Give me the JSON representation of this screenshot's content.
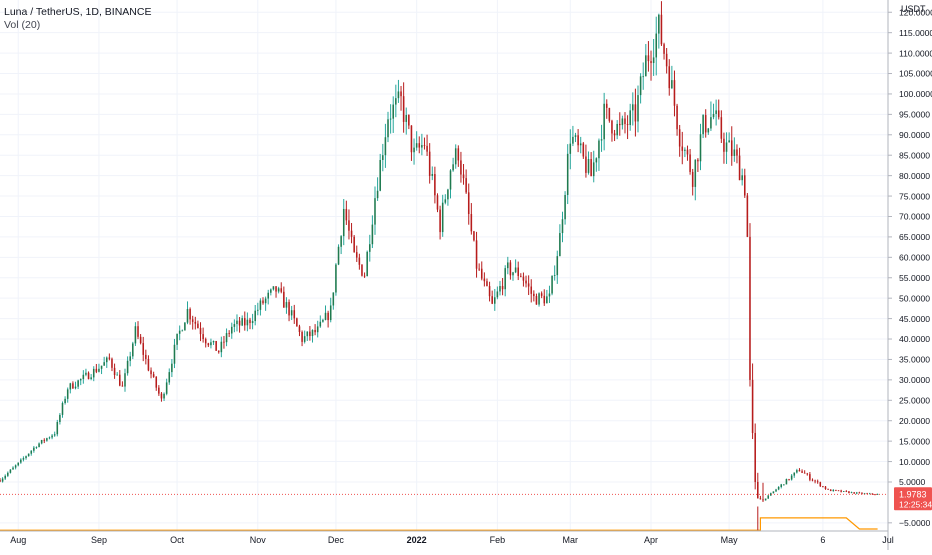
{
  "header": {
    "symbol_line": "Luna / TetherUS, 1D, BINANCE",
    "indicator_line": "Vol (20)"
  },
  "price_axis": {
    "currency_label": "USDT",
    "ticks": [
      "120.0000",
      "115.0000",
      "110.0000",
      "105.0000",
      "100.0000",
      "95.0000",
      "90.0000",
      "85.0000",
      "80.0000",
      "75.0000",
      "70.0000",
      "65.0000",
      "60.0000",
      "55.0000",
      "50.0000",
      "45.0000",
      "40.0000",
      "35.0000",
      "30.0000",
      "25.0000",
      "20.0000",
      "15.0000",
      "10.0000",
      "5.0000",
      "−5.0000"
    ]
  },
  "time_axis": {
    "labels": [
      "Aug",
      "Sep",
      "Oct",
      "Nov",
      "Dec",
      "2022",
      "Feb",
      "Mar",
      "Apr",
      "May",
      "6",
      "Jul"
    ],
    "bold_label": "2022"
  },
  "last_price": {
    "value": "1.9783",
    "countdown": "12:25:34"
  },
  "colors": {
    "up": "#26a69a",
    "up_body": "#1f7a4f",
    "down": "#b71c1c",
    "grid": "#f0f3fa",
    "axis_text": "#131722",
    "last_price_badge": "#ef5350",
    "last_price_line": "#ef5350",
    "volume_ma": "#ff9800"
  },
  "chart_data": {
    "type": "candlestick",
    "symbol": "Luna / TetherUS",
    "interval": "1D",
    "exchange": "BINANCE",
    "y_range": [
      -7,
      123
    ],
    "x_range": [
      "2021-07-25",
      "2022-07-01"
    ],
    "close_anchors": [
      [
        "2021-07-25",
        5.5
      ],
      [
        "2021-08-01",
        9.5
      ],
      [
        "2021-08-08",
        14
      ],
      [
        "2021-08-15",
        17
      ],
      [
        "2021-08-20",
        28
      ],
      [
        "2021-08-25",
        30
      ],
      [
        "2021-09-01",
        33
      ],
      [
        "2021-09-05",
        35
      ],
      [
        "2021-09-10",
        28
      ],
      [
        "2021-09-15",
        42
      ],
      [
        "2021-09-20",
        33
      ],
      [
        "2021-09-25",
        25
      ],
      [
        "2021-10-01",
        40
      ],
      [
        "2021-10-05",
        47
      ],
      [
        "2021-10-12",
        40
      ],
      [
        "2021-10-17",
        37
      ],
      [
        "2021-10-22",
        43
      ],
      [
        "2021-10-28",
        44
      ],
      [
        "2021-11-03",
        49
      ],
      [
        "2021-11-08",
        52
      ],
      [
        "2021-11-13",
        47
      ],
      [
        "2021-11-18",
        40
      ],
      [
        "2021-11-24",
        42
      ],
      [
        "2021-11-29",
        47
      ],
      [
        "2021-12-01",
        58
      ],
      [
        "2021-12-04",
        72
      ],
      [
        "2021-12-08",
        60
      ],
      [
        "2021-12-12",
        56
      ],
      [
        "2021-12-16",
        75
      ],
      [
        "2021-12-21",
        95
      ],
      [
        "2021-12-26",
        98
      ],
      [
        "2021-12-31",
        85
      ],
      [
        "2022-01-04",
        88
      ],
      [
        "2022-01-10",
        68
      ],
      [
        "2022-01-14",
        82
      ],
      [
        "2022-01-17",
        86
      ],
      [
        "2022-01-21",
        70
      ],
      [
        "2022-01-24",
        58
      ],
      [
        "2022-01-30",
        48
      ],
      [
        "2022-02-05",
        57
      ],
      [
        "2022-02-10",
        56
      ],
      [
        "2022-02-15",
        50
      ],
      [
        "2022-02-21",
        50
      ],
      [
        "2022-02-25",
        65
      ],
      [
        "2022-03-01",
        90
      ],
      [
        "2022-03-05",
        85
      ],
      [
        "2022-03-09",
        80
      ],
      [
        "2022-03-14",
        95
      ],
      [
        "2022-03-20",
        91
      ],
      [
        "2022-03-26",
        95
      ],
      [
        "2022-03-30",
        108
      ],
      [
        "2022-04-04",
        116
      ],
      [
        "2022-04-08",
        105
      ],
      [
        "2022-04-12",
        90
      ],
      [
        "2022-04-17",
        80
      ],
      [
        "2022-04-21",
        92
      ],
      [
        "2022-04-25",
        95
      ],
      [
        "2022-04-29",
        88
      ],
      [
        "2022-05-03",
        85
      ],
      [
        "2022-05-06",
        80
      ],
      [
        "2022-05-07",
        77
      ],
      [
        "2022-05-08",
        65
      ],
      [
        "2022-05-09",
        30
      ],
      [
        "2022-05-10",
        17
      ],
      [
        "2022-05-11",
        5
      ],
      [
        "2022-05-12",
        1
      ],
      [
        "2022-05-14",
        0.5
      ],
      [
        "2022-05-28",
        8
      ],
      [
        "2022-06-01",
        6
      ],
      [
        "2022-06-08",
        3
      ],
      [
        "2022-06-20",
        2.2
      ],
      [
        "2022-06-27",
        1.9783
      ]
    ],
    "volume_ma_line": [
      [
        "2021-07-25",
        -6.8
      ],
      [
        "2022-05-13",
        -6.8
      ],
      [
        "2022-05-13",
        -3.8
      ],
      [
        "2022-06-15",
        -3.8
      ],
      [
        "2022-06-20",
        -6.5
      ],
      [
        "2022-06-27",
        -6.5
      ]
    ],
    "last_close": 1.9783
  }
}
